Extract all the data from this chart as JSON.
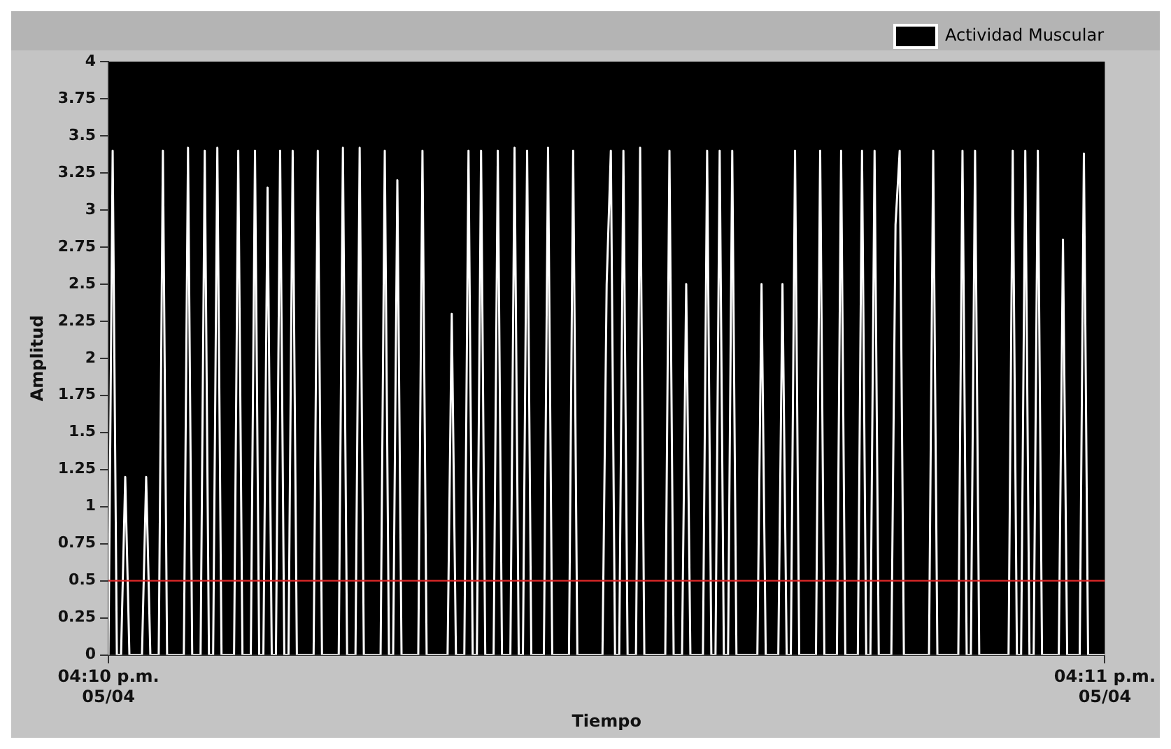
{
  "chart_data": {
    "type": "line",
    "xlabel": "Tiempo",
    "ylabel": "Amplitud",
    "legend": "top right",
    "grid": false,
    "marker": "none",
    "line_style": "solid",
    "ylim": [
      0,
      4
    ],
    "yticks": [
      0,
      0.25,
      0.5,
      0.75,
      1,
      1.25,
      1.5,
      1.75,
      2,
      2.25,
      2.5,
      2.75,
      3,
      3.25,
      3.5,
      3.75,
      4
    ],
    "ref_lines": [
      {
        "axis": "y",
        "value": 0.5,
        "color": "#e02828"
      }
    ],
    "categories": [
      "04:10 p.m.\n05/04",
      null,
      null,
      null,
      null,
      null,
      null,
      null,
      null,
      null,
      null,
      null,
      null,
      null,
      null,
      null,
      null,
      null,
      null,
      null,
      null,
      null,
      null,
      null,
      null,
      null,
      null,
      null,
      null,
      null,
      null,
      null,
      null,
      null,
      null,
      null,
      null,
      null,
      null,
      null,
      null,
      null,
      null,
      null,
      null,
      null,
      null,
      null,
      null,
      null,
      null,
      null,
      null,
      null,
      null,
      null,
      null,
      null,
      null,
      null,
      null,
      null,
      null,
      null,
      null,
      null,
      null,
      null,
      null,
      null,
      null,
      null,
      null,
      null,
      null,
      null,
      null,
      null,
      null,
      null,
      null,
      null,
      null,
      null,
      null,
      null,
      null,
      null,
      null,
      null,
      null,
      null,
      null,
      null,
      null,
      null,
      null,
      null,
      null,
      null,
      null,
      null,
      null,
      null,
      null,
      null,
      null,
      null,
      null,
      null,
      null,
      null,
      null,
      null,
      null,
      null,
      null,
      null,
      null,
      null,
      null,
      null,
      null,
      null,
      null,
      null,
      null,
      null,
      null,
      null,
      null,
      null,
      null,
      null,
      null,
      null,
      null,
      null,
      null,
      null,
      null,
      null,
      null,
      null,
      null,
      null,
      null,
      null,
      null,
      null,
      null,
      null,
      null,
      null,
      null,
      null,
      null,
      null,
      null,
      null,
      null,
      null,
      null,
      null,
      null,
      null,
      null,
      null,
      null,
      null,
      null,
      null,
      null,
      null,
      null,
      null,
      null,
      null,
      null,
      null,
      null,
      null,
      null,
      null,
      null,
      null,
      null,
      null,
      null,
      null,
      null,
      null,
      null,
      null,
      null,
      null,
      null,
      null,
      null,
      null,
      null,
      null,
      null,
      null,
      null,
      null,
      null,
      null,
      null,
      null,
      null,
      null,
      null,
      null,
      null,
      null,
      null,
      null,
      null,
      null,
      null,
      null,
      null,
      null,
      null,
      null,
      null,
      null,
      null,
      null,
      null,
      null,
      null,
      null,
      null,
      null,
      null,
      null,
      "04:11 p.m.\n05/04"
    ],
    "series": [
      {
        "name": "Actividad Muscular",
        "color": "#ffffff",
        "values": [
          0,
          3.4,
          0,
          0,
          1.2,
          0,
          0,
          0,
          0,
          1.2,
          0,
          0,
          0,
          3.4,
          0,
          0,
          0,
          0,
          0,
          3.42,
          0,
          0,
          0,
          3.4,
          0,
          0,
          3.42,
          0,
          0,
          0,
          0,
          3.4,
          0,
          0,
          0,
          3.4,
          0,
          0,
          3.15,
          0,
          0,
          3.4,
          0,
          0,
          3.4,
          0,
          0,
          0,
          0,
          0,
          3.4,
          0,
          0,
          0,
          0,
          0,
          3.42,
          0,
          0,
          0,
          3.42,
          0,
          0,
          0,
          0,
          0,
          3.4,
          0,
          0,
          3.2,
          0,
          0,
          0,
          0,
          0,
          3.4,
          0,
          0,
          0,
          0,
          0,
          0,
          2.3,
          0,
          0,
          0,
          3.4,
          0,
          0,
          3.4,
          0,
          0,
          0,
          3.4,
          0,
          0,
          0,
          3.42,
          0,
          0,
          3.4,
          0,
          0,
          0,
          0,
          3.42,
          0,
          0,
          0,
          0,
          0,
          3.4,
          0,
          0,
          0,
          0,
          0,
          0,
          0,
          2.5,
          3.4,
          0,
          0,
          3.4,
          0,
          0,
          0,
          3.42,
          0,
          0,
          0,
          0,
          0,
          0,
          3.4,
          0,
          0,
          0,
          2.5,
          0,
          0,
          0,
          0,
          3.4,
          0,
          0,
          3.4,
          0,
          0,
          3.4,
          0,
          0,
          0,
          0,
          0,
          0,
          2.5,
          0,
          0,
          0,
          0,
          2.5,
          0,
          0,
          3.4,
          0,
          0,
          0,
          0,
          0,
          3.4,
          0,
          0,
          0,
          0,
          3.4,
          0,
          0,
          0,
          0,
          3.4,
          0,
          0,
          3.4,
          0,
          0,
          0,
          0,
          2.9,
          3.4,
          0,
          0,
          0,
          0,
          0,
          0,
          0,
          3.4,
          0,
          0,
          0,
          0,
          0,
          0,
          3.4,
          0,
          0,
          3.4,
          0,
          0,
          0,
          0,
          0,
          0,
          0,
          0,
          3.4,
          0,
          0,
          3.4,
          0,
          0,
          3.4,
          0,
          0,
          0,
          0,
          0,
          2.8,
          0,
          0,
          0,
          0,
          3.38,
          0,
          0,
          0,
          0,
          0
        ]
      }
    ]
  }
}
